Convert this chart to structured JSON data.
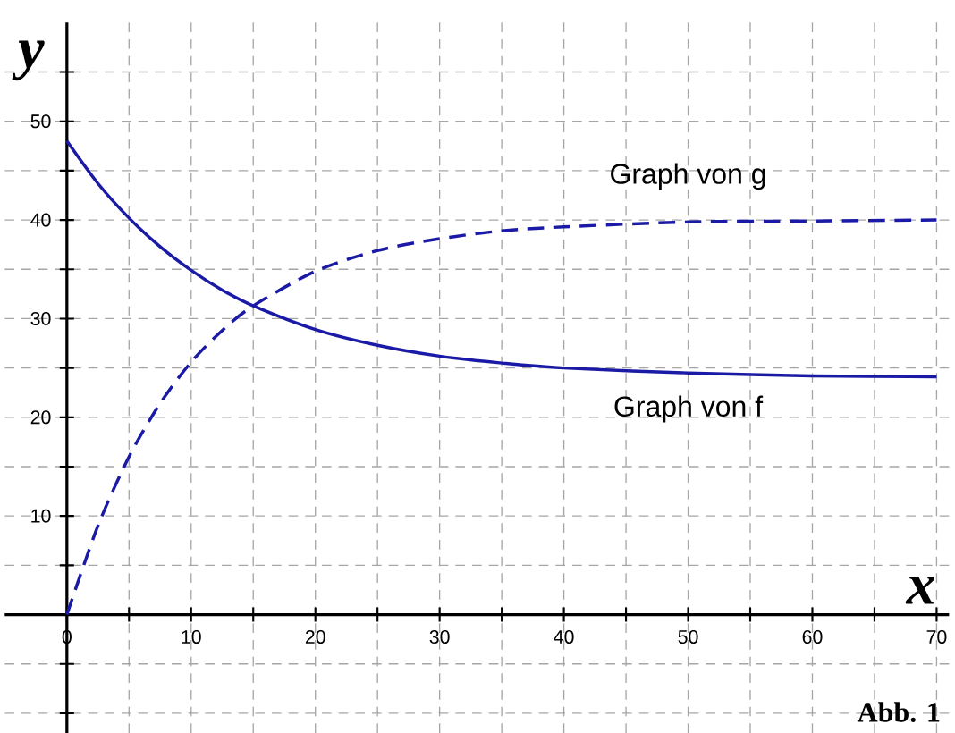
{
  "chart_data": {
    "type": "line",
    "xlabel": "x",
    "ylabel": "y",
    "series": [
      {
        "name": "Graph von f",
        "color": "#1a1aa6",
        "line_style": "solid",
        "x": [
          0,
          2.5,
          5,
          7.5,
          10,
          12.5,
          15,
          20,
          25,
          30,
          35,
          40,
          50,
          60,
          70
        ],
        "values": [
          48,
          43.7,
          40.2,
          37.3,
          34.9,
          32.9,
          31.3,
          28.9,
          27.3,
          26.2,
          25.5,
          25.0,
          24.5,
          24.2,
          24.1
        ]
      },
      {
        "name": "Graph von g",
        "color": "#1a1aa6",
        "line_style": "dashed",
        "x": [
          0,
          2.5,
          5,
          7.5,
          10,
          12.5,
          15,
          20,
          25,
          30,
          35,
          40,
          50,
          60,
          70
        ],
        "values": [
          0,
          9.0,
          16.0,
          21.4,
          25.6,
          28.8,
          31.3,
          34.8,
          36.9,
          38.1,
          38.9,
          39.3,
          39.8,
          39.9,
          40.0
        ]
      }
    ],
    "xlim": [
      -5,
      71
    ],
    "ylim": [
      -12,
      60
    ],
    "xticks": [
      0,
      {
        "value": 5,
        "label": null
      },
      10,
      {
        "value": 15,
        "label": null
      },
      20,
      {
        "value": 25,
        "label": null
      },
      30,
      {
        "value": 35,
        "label": null
      },
      40,
      {
        "value": 45,
        "label": null
      },
      50,
      {
        "value": 55,
        "label": null
      },
      60,
      {
        "value": 65,
        "label": null
      },
      70
    ],
    "yticks": [
      {
        "value": -10,
        "label": null
      },
      {
        "value": -5,
        "label": null
      },
      {
        "value": 0,
        "label": null
      },
      {
        "value": 5,
        "label": null
      },
      10,
      {
        "value": 15,
        "label": null
      },
      20,
      {
        "value": 25,
        "label": null
      },
      30,
      {
        "value": 35,
        "label": null
      },
      40,
      {
        "value": 45,
        "label": null
      },
      50,
      {
        "value": 55,
        "label": null
      }
    ],
    "grid": true,
    "marker": "none",
    "annotations": [
      "Abb. 1"
    ]
  }
}
